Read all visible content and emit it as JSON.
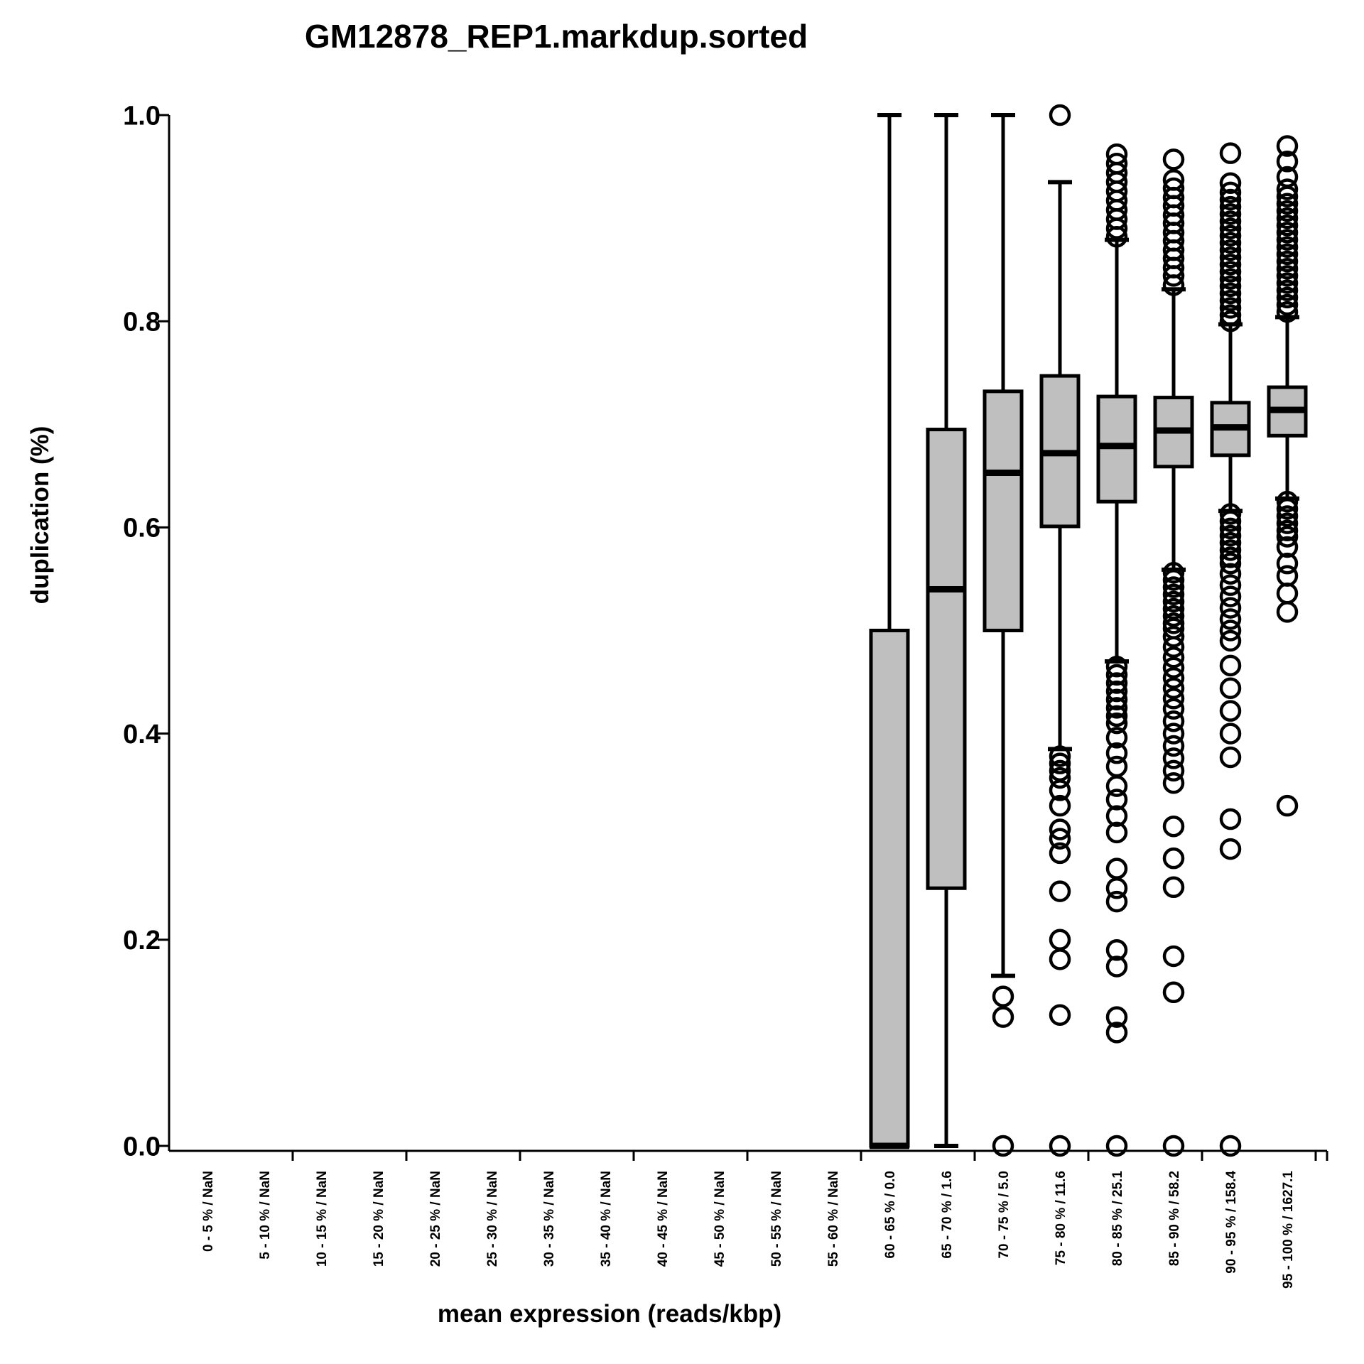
{
  "page": {
    "title": "GM12878_REP1.markdup.sorted"
  },
  "chart_data": {
    "type": "boxplot",
    "title": "GM12878_REP1.markdup.sorted",
    "xlabel": "mean expression (reads/kbp)",
    "ylabel": "duplication (%)",
    "ylim": [
      0,
      1
    ],
    "grid": false,
    "legend": "none",
    "box_fill": "#bfbfbf",
    "stroke_color": "#000000",
    "background": "#ffffff",
    "yticks": [
      {
        "value": 0.0,
        "label": "0.0"
      },
      {
        "value": 0.2,
        "label": "0.2"
      },
      {
        "value": 0.4,
        "label": "0.4"
      },
      {
        "value": 0.6,
        "label": "0.6"
      },
      {
        "value": 0.8,
        "label": "0.8"
      },
      {
        "value": 1.0,
        "label": "1.0"
      }
    ],
    "categories": [
      "0 - 5 % / NaN",
      "5 - 10 % / NaN",
      "10 - 15 % / NaN",
      "15 - 20 % / NaN",
      "20 - 25 % / NaN",
      "25 - 30 % / NaN",
      "30 - 35 % / NaN",
      "35 - 40 % / NaN",
      "40 - 45 % / NaN",
      "45 - 50 % / NaN",
      "50 - 55 % / NaN",
      "55 - 60 % / NaN",
      "60 - 65 % / 0.0",
      "65 - 70 % / 1.6",
      "70 - 75 % / 5.0",
      "75 - 80 % / 11.6",
      "80 - 85 % / 25.1",
      "85 - 90 % / 58.2",
      "90 - 95 % / 158.4",
      "95 - 100 % / 1627.1"
    ],
    "boxes": [
      null,
      null,
      null,
      null,
      null,
      null,
      null,
      null,
      null,
      null,
      null,
      null,
      {
        "category": "60 - 65 % / 0.0",
        "whisker_low": 0.0,
        "q1": 0.0,
        "median": 0.0,
        "q3": 0.5,
        "whisker_high": 1.0,
        "outliers_low": [],
        "outliers_high": []
      },
      {
        "category": "65 - 70 % / 1.6",
        "whisker_low": 0.0,
        "q1": 0.25,
        "median": 0.54,
        "q3": 0.695,
        "whisker_high": 1.0,
        "outliers_low": [],
        "outliers_high": []
      },
      {
        "category": "70 - 75 % / 5.0",
        "whisker_low": 0.165,
        "q1": 0.5,
        "median": 0.653,
        "q3": 0.732,
        "whisker_high": 1.0,
        "outliers_low": [
          0.145,
          0.125,
          0.0
        ],
        "outliers_high": []
      },
      {
        "category": "75 - 80 % / 11.6",
        "whisker_low": 0.385,
        "q1": 0.601,
        "median": 0.672,
        "q3": 0.747,
        "whisker_high": 0.935,
        "outliers_low": [
          0.378,
          0.371,
          0.364,
          0.357,
          0.345,
          0.33,
          0.307,
          0.298,
          0.284,
          0.247,
          0.2,
          0.181,
          0.127,
          0.0
        ],
        "outliers_high": [
          1.0
        ]
      },
      {
        "category": "80 - 85 % / 25.1",
        "whisker_low": 0.47,
        "q1": 0.625,
        "median": 0.679,
        "q3": 0.727,
        "whisker_high": 0.879,
        "outliers_low": [
          0.465,
          0.457,
          0.449,
          0.441,
          0.433,
          0.425,
          0.417,
          0.41,
          0.396,
          0.381,
          0.368,
          0.349,
          0.336,
          0.32,
          0.304,
          0.269,
          0.25,
          0.237,
          0.19,
          0.174,
          0.125,
          0.11,
          0.0
        ],
        "outliers_high": [
          0.962,
          0.953,
          0.944,
          0.935,
          0.926,
          0.917,
          0.908,
          0.899,
          0.89,
          0.882
        ]
      },
      {
        "category": "85 - 90 % / 58.2",
        "whisker_low": 0.559,
        "q1": 0.659,
        "median": 0.694,
        "q3": 0.726,
        "whisker_high": 0.831,
        "outliers_low": [
          0.556,
          0.549,
          0.542,
          0.535,
          0.528,
          0.521,
          0.514,
          0.507,
          0.502,
          0.494,
          0.484,
          0.474,
          0.464,
          0.454,
          0.444,
          0.434,
          0.424,
          0.412,
          0.4,
          0.388,
          0.376,
          0.364,
          0.352,
          0.31,
          0.279,
          0.251,
          0.184,
          0.149,
          0.0
        ],
        "outliers_high": [
          0.957,
          0.937,
          0.929,
          0.92,
          0.912,
          0.903,
          0.895,
          0.886,
          0.878,
          0.869,
          0.861,
          0.852,
          0.844,
          0.835
        ]
      },
      {
        "category": "90 - 95 % / 158.4",
        "whisker_low": 0.616,
        "q1": 0.67,
        "median": 0.697,
        "q3": 0.721,
        "whisker_high": 0.797,
        "outliers_low": [
          0.613,
          0.606,
          0.599,
          0.592,
          0.585,
          0.578,
          0.571,
          0.565,
          0.555,
          0.544,
          0.533,
          0.522,
          0.511,
          0.5,
          0.49,
          0.466,
          0.444,
          0.422,
          0.4,
          0.377,
          0.317,
          0.288,
          0.0
        ],
        "outliers_high": [
          0.963,
          0.934,
          0.925,
          0.918,
          0.911,
          0.904,
          0.897,
          0.89,
          0.883,
          0.876,
          0.869,
          0.862,
          0.855,
          0.848,
          0.841,
          0.834,
          0.827,
          0.82,
          0.813,
          0.806,
          0.8
        ]
      },
      {
        "category": "95 - 100 % / 1627.1",
        "whisker_low": 0.628,
        "q1": 0.689,
        "median": 0.714,
        "q3": 0.736,
        "whisker_high": 0.804,
        "outliers_low": [
          0.625,
          0.618,
          0.611,
          0.604,
          0.597,
          0.591,
          0.581,
          0.565,
          0.553,
          0.536,
          0.518,
          0.33
        ],
        "outliers_high": [
          0.97,
          0.955,
          0.94,
          0.928,
          0.921,
          0.914,
          0.907,
          0.9,
          0.893,
          0.886,
          0.879,
          0.872,
          0.865,
          0.858,
          0.851,
          0.844,
          0.837,
          0.83,
          0.823,
          0.816,
          0.809
        ]
      }
    ]
  }
}
